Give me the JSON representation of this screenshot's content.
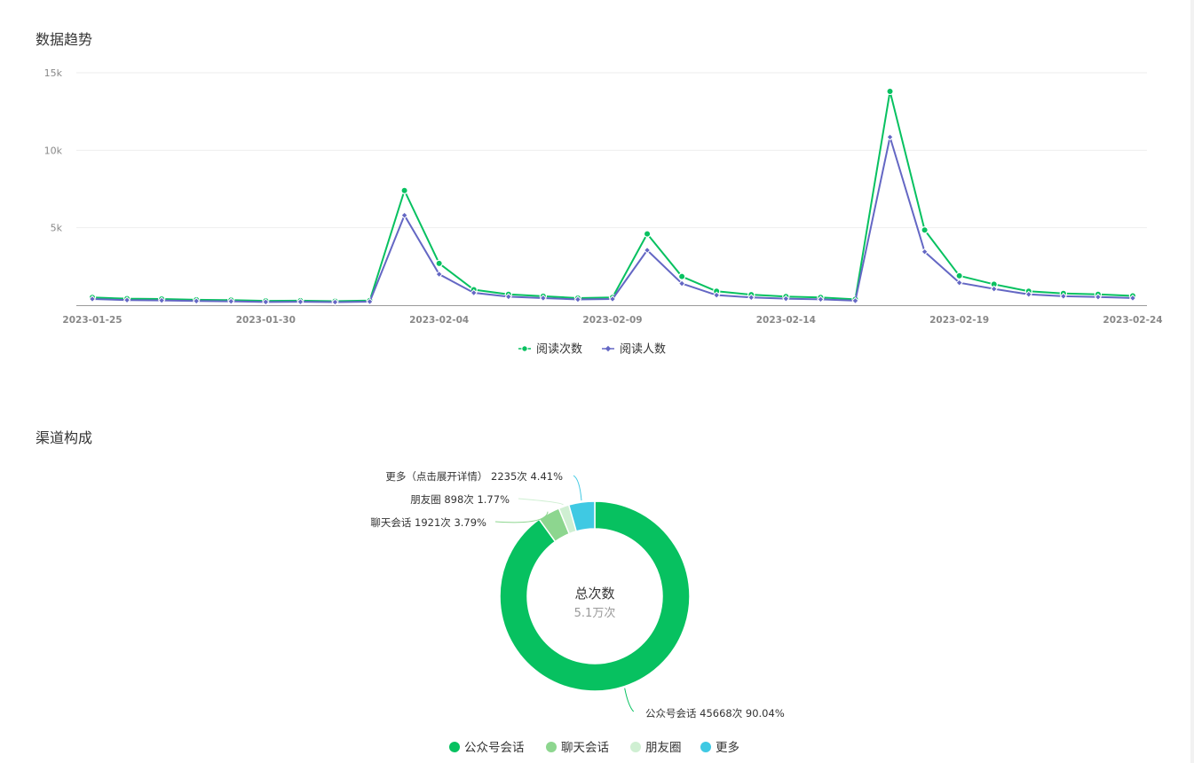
{
  "sections": {
    "trend_title": "数据趋势",
    "channel_title": "渠道构成"
  },
  "chart_data": [
    {
      "type": "line",
      "title": "数据趋势",
      "x": [
        "2023-01-25",
        "2023-01-26",
        "2023-01-27",
        "2023-01-28",
        "2023-01-29",
        "2023-01-30",
        "2023-01-31",
        "2023-02-01",
        "2023-02-02",
        "2023-02-03",
        "2023-02-04",
        "2023-02-05",
        "2023-02-06",
        "2023-02-07",
        "2023-02-08",
        "2023-02-09",
        "2023-02-10",
        "2023-02-11",
        "2023-02-12",
        "2023-02-13",
        "2023-02-14",
        "2023-02-15",
        "2023-02-16",
        "2023-02-17",
        "2023-02-18",
        "2023-02-19",
        "2023-02-20",
        "2023-02-21",
        "2023-02-22",
        "2023-02-23",
        "2023-02-24"
      ],
      "x_tick_labels": [
        "2023-01-25",
        "2023-01-30",
        "2023-02-04",
        "2023-02-09",
        "2023-02-14",
        "2023-02-19",
        "2023-02-24"
      ],
      "y_tick_labels": [
        "15k",
        "10k",
        "5k"
      ],
      "ylim": [
        0,
        15000
      ],
      "grid": true,
      "legend_position": "bottom-center",
      "series": [
        {
          "name": "阅读次数",
          "color": "#07c160",
          "marker": "circle",
          "values": [
            500,
            420,
            400,
            350,
            330,
            280,
            290,
            260,
            300,
            7400,
            2700,
            1000,
            700,
            580,
            460,
            500,
            4600,
            1850,
            900,
            680,
            560,
            500,
            380,
            13800,
            4850,
            1900,
            1350,
            900,
            760,
            700,
            600
          ]
        },
        {
          "name": "阅读人数",
          "color": "#6467c4",
          "marker": "diamond",
          "values": [
            400,
            330,
            310,
            270,
            250,
            210,
            220,
            200,
            230,
            5800,
            2000,
            800,
            550,
            460,
            370,
            400,
            3550,
            1400,
            650,
            500,
            420,
            380,
            290,
            10850,
            3450,
            1450,
            1050,
            700,
            580,
            530,
            460
          ]
        }
      ]
    },
    {
      "type": "pie",
      "title": "渠道构成",
      "center_label": "总次数",
      "center_value": "5.1万次",
      "legend_position": "bottom-center",
      "slices": [
        {
          "name": "公众号会话",
          "value": 45668,
          "percent": "90.04%",
          "color": "#07c160",
          "label": "公众号会话 45668次 90.04%"
        },
        {
          "name": "聊天会话",
          "value": 1921,
          "percent": "3.79%",
          "color": "#8dd68f",
          "label": "聊天会话 1921次 3.79%"
        },
        {
          "name": "朋友圈",
          "value": 898,
          "percent": "1.77%",
          "color": "#cfefd2",
          "label": "朋友圈 898次 1.77%"
        },
        {
          "name": "更多",
          "value": 2235,
          "percent": "4.41%",
          "color": "#3fc9e3",
          "label": "更多（点击展开详情） 2235次 4.41%"
        }
      ]
    }
  ]
}
